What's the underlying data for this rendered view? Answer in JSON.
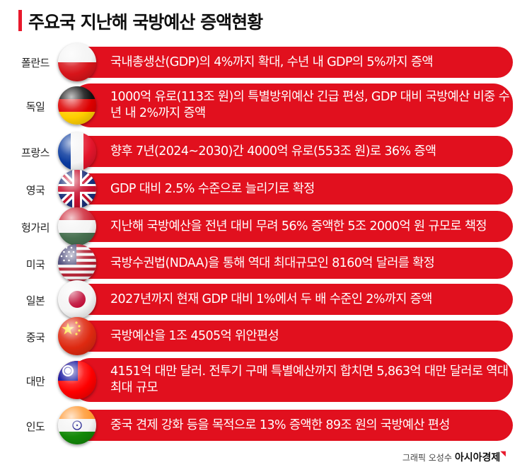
{
  "title": "주요국 지난해 국방예산 증액현황",
  "rows": [
    {
      "country": "폴란드",
      "text": "국내총생산(GDP)의 4%까지 확대, 수년 내 GDP의 5%까지 증액"
    },
    {
      "country": "독일",
      "text": "1000억 유로(113조 원)의 특별방위예산 긴급 편성, GDP 대비 국방예산 비중 수년 내 2%까지 증액"
    },
    {
      "country": "프랑스",
      "text": "향후 7년(2024~2030)간 4000억 유로(553조 원)로 36% 증액"
    },
    {
      "country": "영국",
      "text": "GDP 대비 2.5% 수준으로 늘리기로 확정"
    },
    {
      "country": "헝가리",
      "text": "지난해 국방예산을 전년 대비 무려 56% 증액한 5조 2000억 원 규모로 책정"
    },
    {
      "country": "미국",
      "text": "국방수권법(NDAA)을 통해 역대 최대규모인 8160억 달러를 확정"
    },
    {
      "country": "일본",
      "text": "2027년까지 현재 GDP 대비 1%에서 두 배 수준인 2%까지 증액"
    },
    {
      "country": "중국",
      "text": "국방예산을 1조 4505억 위안편성"
    },
    {
      "country": "대만",
      "text": "4151억 대만 달러. 전투기 구매 특별예산까지 합치면 5,863억 대만 달러로 역대 최대 규모"
    },
    {
      "country": "인도",
      "text": "중국 견제 강화 등을 목적으로 13% 증액한 89조 원의 국방예산 편성"
    }
  ],
  "credit": {
    "label": "그래픽 오성수",
    "brand": "아시아경제"
  },
  "colors": {
    "accent": "#e1101e"
  }
}
